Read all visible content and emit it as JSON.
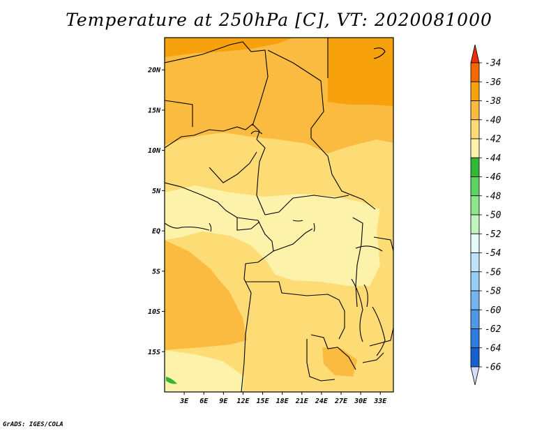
{
  "title": "Temperature at 250hPa [C], VT: 2020081000",
  "credit": "GrADS: IGES/COLA",
  "map": {
    "lon_range": [
      0,
      35
    ],
    "lat_range": [
      -20,
      24
    ],
    "lat_ticks": [
      {
        "value": 20,
        "label": "20N"
      },
      {
        "value": 15,
        "label": "15N"
      },
      {
        "value": 10,
        "label": "10N"
      },
      {
        "value": 5,
        "label": "5N"
      },
      {
        "value": 0,
        "label": "EQ"
      },
      {
        "value": -5,
        "label": "5S"
      },
      {
        "value": -10,
        "label": "10S"
      },
      {
        "value": -15,
        "label": "15S"
      }
    ],
    "lon_ticks": [
      {
        "value": 3,
        "label": "3E"
      },
      {
        "value": 6,
        "label": "6E"
      },
      {
        "value": 9,
        "label": "9E"
      },
      {
        "value": 12,
        "label": "12E"
      },
      {
        "value": 15,
        "label": "15E"
      },
      {
        "value": 18,
        "label": "18E"
      },
      {
        "value": 21,
        "label": "21E"
      },
      {
        "value": 24,
        "label": "24E"
      },
      {
        "value": 27,
        "label": "27E"
      },
      {
        "value": 30,
        "label": "30E"
      },
      {
        "value": 33,
        "label": "33E"
      }
    ]
  },
  "colorbar": {
    "levels": [
      "-34",
      "-36",
      "-38",
      "-40",
      "-42",
      "-44",
      "-46",
      "-48",
      "-50",
      "-52",
      "-54",
      "-56",
      "-58",
      "-60",
      "-62",
      "-64",
      "-66"
    ],
    "colors": [
      "#e8300a",
      "#f06a00",
      "#f7a20c",
      "#fbba40",
      "#fddb75",
      "#fdf2aa",
      "#34b834",
      "#5fd35f",
      "#8de88d",
      "#bff4bf",
      "#e6fafa",
      "#bde2fa",
      "#98cdf5",
      "#74b5f0",
      "#4f98e8",
      "#2d7cdf",
      "#1860cc",
      "#0c3aa8",
      "#08086a",
      "#d6dcf6"
    ]
  }
}
